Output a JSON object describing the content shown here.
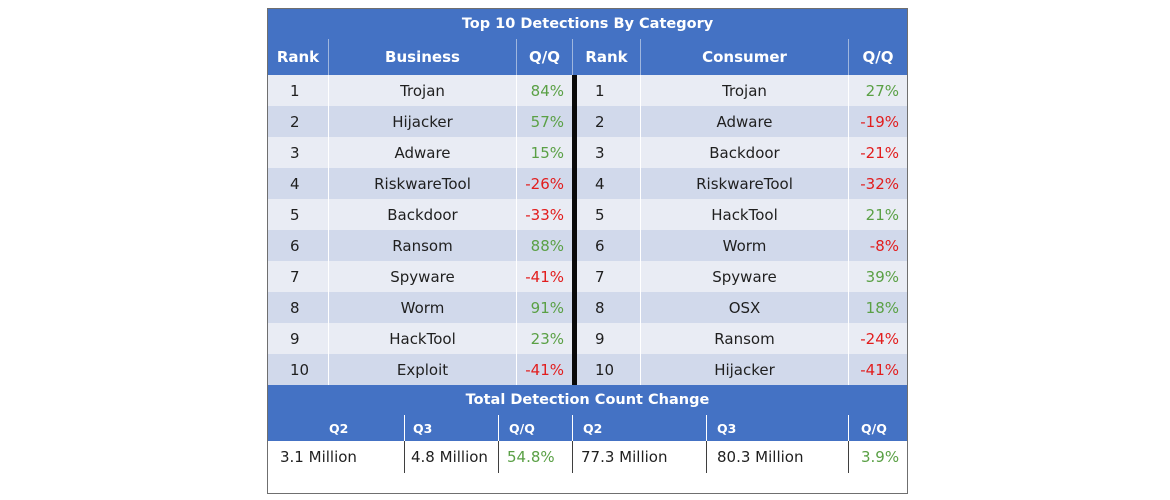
{
  "title": "Top 10 Detections By Category",
  "headers": {
    "rank_left": "Rank",
    "business": "Business",
    "qq_left": "Q/Q",
    "rank_right": "Rank",
    "consumer": "Consumer",
    "qq_right": "Q/Q"
  },
  "rows": [
    {
      "rank_b": "1",
      "business": "Trojan",
      "qq_b": "84%",
      "rank_c": "1",
      "consumer": "Trojan",
      "qq_c": "27%"
    },
    {
      "rank_b": "2",
      "business": "Hijacker",
      "qq_b": "57%",
      "rank_c": "2",
      "consumer": "Adware",
      "qq_c": "-19%"
    },
    {
      "rank_b": "3",
      "business": "Adware",
      "qq_b": "15%",
      "rank_c": "3",
      "consumer": "Backdoor",
      "qq_c": "-21%"
    },
    {
      "rank_b": "4",
      "business": "RiskwareTool",
      "qq_b": "-26%",
      "rank_c": "4",
      "consumer": "RiskwareTool",
      "qq_c": "-32%"
    },
    {
      "rank_b": "5",
      "business": "Backdoor",
      "qq_b": "-33%",
      "rank_c": "5",
      "consumer": "HackTool",
      "qq_c": "21%"
    },
    {
      "rank_b": "6",
      "business": "Ransom",
      "qq_b": "88%",
      "rank_c": "6",
      "consumer": "Worm",
      "qq_c": "-8%"
    },
    {
      "rank_b": "7",
      "business": "Spyware",
      "qq_b": "-41%",
      "rank_c": "7",
      "consumer": "Spyware",
      "qq_c": "39%"
    },
    {
      "rank_b": "8",
      "business": "Worm",
      "qq_b": "91%",
      "rank_c": "8",
      "consumer": "OSX",
      "qq_c": "18%"
    },
    {
      "rank_b": "9",
      "business": "HackTool",
      "qq_b": "23%",
      "rank_c": "9",
      "consumer": "Ransom",
      "qq_c": "-24%"
    },
    {
      "rank_b": "10",
      "business": "Exploit",
      "qq_b": "-41%",
      "rank_c": "10",
      "consumer": "Hijacker",
      "qq_c": "-41%"
    }
  ],
  "total": {
    "title": "Total Detection Count Change",
    "headers": [
      "Q2",
      "Q3",
      "Q/Q",
      "Q2",
      "Q3",
      "Q/Q"
    ],
    "values": [
      "3.1 Million",
      "4.8 Million",
      "54.8%",
      "77.3 Million",
      "80.3 Million",
      "3.9%"
    ]
  },
  "colors": {
    "header_bg": "#4472c4",
    "row_light": "#e9ecf4",
    "row_dark": "#d1d9eb",
    "positive": "#5aa045",
    "negative": "#e21d1d"
  }
}
